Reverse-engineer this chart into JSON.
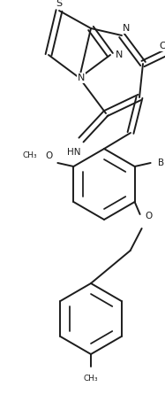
{
  "bg_color": "#ffffff",
  "line_color": "#1c1c1c",
  "bond_lw": 1.4,
  "figsize": [
    1.87,
    4.54
  ],
  "dpi": 100,
  "xlim": [
    0,
    187
  ],
  "ylim": [
    0,
    454
  ]
}
